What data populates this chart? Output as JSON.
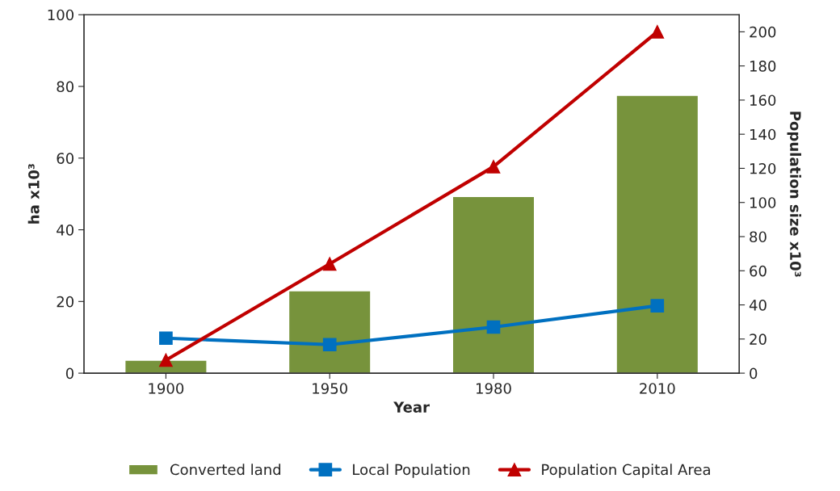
{
  "chart_data": {
    "type": "bar",
    "xlabel": "Year",
    "ylabel": "ha x10³",
    "y2label": "Population size x10³",
    "categories": [
      "1900",
      "1950",
      "1980",
      "2010"
    ],
    "series": [
      {
        "name": "Converted land",
        "color": "#77933c",
        "values": [
          3.6,
          23,
          49.3,
          77.5
        ]
      },
      {
        "name": "Local Population",
        "type": "line",
        "axis": "y2",
        "color": "#0070c0",
        "marker": "square",
        "values": [
          20.5,
          16.7,
          27,
          39.5
        ]
      },
      {
        "name": "Population Capital Area",
        "type": "line",
        "axis": "y2",
        "color": "#c00000",
        "marker": "triangle",
        "values": [
          7.6,
          64,
          121,
          200
        ]
      }
    ],
    "ylim": [
      0,
      100
    ],
    "yticks": [
      0,
      20,
      40,
      60,
      80,
      100
    ],
    "y2lim": [
      0,
      210
    ],
    "y2ticks": [
      0,
      20,
      40,
      60,
      80,
      100,
      120,
      140,
      160,
      180,
      200
    ],
    "grid": false,
    "legend": "bottom"
  }
}
